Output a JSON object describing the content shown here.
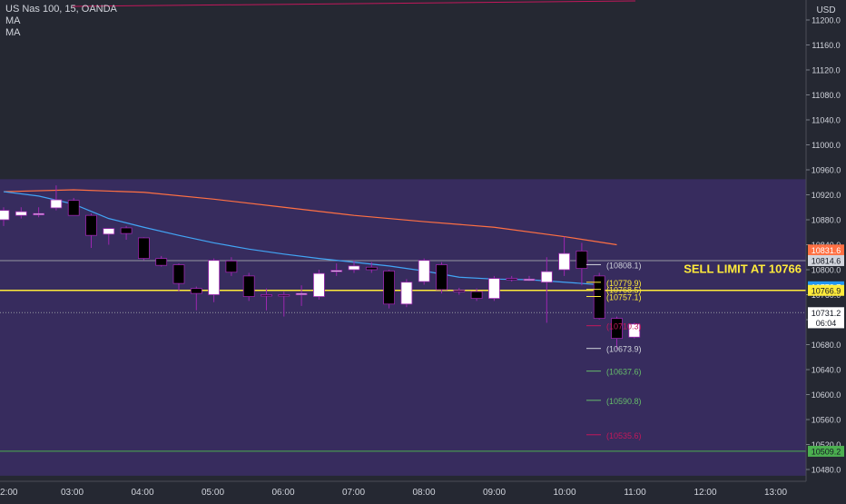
{
  "legend": {
    "symbol": "US Nas 100, 15, OANDA",
    "ma1": "MA",
    "ma2": "MA"
  },
  "chart_data": {
    "type": "candlestick",
    "currency": "USD",
    "y_ticks": [
      "11200.0",
      "11160.0",
      "11120.0",
      "11080.0",
      "11040.0",
      "11000.0",
      "10960.0",
      "10920.0",
      "10880.0",
      "10840.0",
      "10800.0",
      "10760.0",
      "10720.0",
      "10680.0",
      "10640.0",
      "10600.0",
      "10560.0",
      "10520.0",
      "10480.0"
    ],
    "x_ticks": [
      "2:00",
      "03:00",
      "04:00",
      "05:00",
      "06:00",
      "07:00",
      "08:00",
      "09:00",
      "10:00",
      "11:00",
      "12:00",
      "13:00"
    ],
    "ylim": [
      10470,
      11215
    ],
    "zone": {
      "top": 10945,
      "bottom": 10470,
      "color": "#3b2d66"
    },
    "horizontal_lines": [
      {
        "price": 10814.6,
        "color": "#9598a1"
      },
      {
        "price": 10766.9,
        "color": "#ffeb3b"
      },
      {
        "price": 10731.2,
        "color": "#9598a1",
        "dotted": true
      },
      {
        "price": 10509.2,
        "color": "#4caf50"
      }
    ],
    "price_labels": [
      {
        "text": "10831.6",
        "price": 10831.6,
        "bg": "#ff7043",
        "fg": "#ffffff"
      },
      {
        "text": "10814.6",
        "price": 10814.6,
        "bg": "#d1d4dc",
        "fg": "#131722"
      },
      {
        "text": "10772.7",
        "price": 10772.7,
        "bg": "#2196f3",
        "fg": "#ffffff"
      },
      {
        "text": "10766.9",
        "price": 10766.9,
        "bg": "#ffeb3b",
        "fg": "#131722"
      },
      {
        "text": "10731.2",
        "price": 10731.2,
        "bg": "#ffffff",
        "fg": "#131722"
      },
      {
        "text": "06:04",
        "price": 10715.0,
        "bg": "#ffffff",
        "fg": "#131722"
      },
      {
        "text": "10509.2",
        "price": 10509.2,
        "bg": "#4caf50",
        "fg": "#131722"
      }
    ],
    "annotation": {
      "text": "SELL LIMIT AT 10766",
      "color": "#ffeb3b"
    },
    "level_labels": [
      {
        "text": "(10808.1)",
        "price": 10808.1,
        "color": "#d1d4dc"
      },
      {
        "text": "(10779.9)",
        "price": 10779.9,
        "color": "#ffeb3b"
      },
      {
        "text": "(10768.5)",
        "price": 10768.5,
        "color": "#ffeb3b"
      },
      {
        "text": "(10757.1)",
        "price": 10757.1,
        "color": "#ffeb3b"
      },
      {
        "text": "(10710.3)",
        "price": 10710.3,
        "color": "#c2185b"
      },
      {
        "text": "(10673.9)",
        "price": 10673.9,
        "color": "#d1d4dc"
      },
      {
        "text": "(10637.6)",
        "price": 10637.6,
        "color": "#66bb6a"
      },
      {
        "text": "(10590.8)",
        "price": 10590.8,
        "color": "#66bb6a"
      },
      {
        "text": "(10535.6)",
        "price": 10535.6,
        "color": "#c2185b"
      }
    ],
    "candles": [
      {
        "time": "02:30",
        "open": 10880,
        "high": 10900,
        "low": 10870,
        "close": 10895
      },
      {
        "time": "02:45",
        "open": 10887,
        "high": 10900,
        "low": 10882,
        "close": 10893
      },
      {
        "time": "03:00",
        "open": 10888,
        "high": 10900,
        "low": 10884,
        "close": 10890
      },
      {
        "time": "03:15",
        "open": 10899,
        "high": 10935,
        "low": 10895,
        "close": 10912
      },
      {
        "time": "03:30",
        "open": 10911,
        "high": 10915,
        "low": 10888,
        "close": 10887
      },
      {
        "time": "03:45",
        "open": 10887,
        "high": 10890,
        "low": 10835,
        "close": 10855
      },
      {
        "time": "04:00",
        "open": 10857,
        "high": 10865,
        "low": 10840,
        "close": 10866
      },
      {
        "time": "04:15",
        "open": 10867,
        "high": 10870,
        "low": 10848,
        "close": 10858
      },
      {
        "time": "04:30",
        "open": 10851,
        "high": 10852,
        "low": 10815,
        "close": 10818
      },
      {
        "time": "04:45",
        "open": 10818,
        "high": 10822,
        "low": 10805,
        "close": 10807
      },
      {
        "time": "05:00",
        "open": 10808,
        "high": 10810,
        "low": 10765,
        "close": 10778
      },
      {
        "time": "05:15",
        "open": 10770,
        "high": 10773,
        "low": 10735,
        "close": 10762
      },
      {
        "time": "05:30",
        "open": 10760,
        "high": 10818,
        "low": 10748,
        "close": 10815
      },
      {
        "time": "05:45",
        "open": 10814,
        "high": 10820,
        "low": 10790,
        "close": 10796
      },
      {
        "time": "06:00",
        "open": 10790,
        "high": 10795,
        "low": 10750,
        "close": 10757
      },
      {
        "time": "06:15",
        "open": 10760,
        "high": 10770,
        "low": 10735,
        "close": 10758
      },
      {
        "time": "06:30",
        "open": 10760,
        "high": 10765,
        "low": 10725,
        "close": 10758
      },
      {
        "time": "06:45",
        "open": 10760,
        "high": 10775,
        "low": 10742,
        "close": 10762
      },
      {
        "time": "07:00",
        "open": 10757,
        "high": 10800,
        "low": 10752,
        "close": 10794
      },
      {
        "time": "07:15",
        "open": 10797,
        "high": 10810,
        "low": 10790,
        "close": 10799
      },
      {
        "time": "07:30",
        "open": 10800,
        "high": 10815,
        "low": 10795,
        "close": 10806
      },
      {
        "time": "07:45",
        "open": 10804,
        "high": 10812,
        "low": 10795,
        "close": 10800
      },
      {
        "time": "08:00",
        "open": 10798,
        "high": 10800,
        "low": 10738,
        "close": 10745
      },
      {
        "time": "08:15",
        "open": 10745,
        "high": 10785,
        "low": 10740,
        "close": 10780
      },
      {
        "time": "08:30",
        "open": 10781,
        "high": 10818,
        "low": 10776,
        "close": 10815
      },
      {
        "time": "08:45",
        "open": 10808,
        "high": 10812,
        "low": 10762,
        "close": 10768
      },
      {
        "time": "09:00",
        "open": 10767,
        "high": 10771,
        "low": 10760,
        "close": 10766
      },
      {
        "time": "09:15",
        "open": 10765,
        "high": 10770,
        "low": 10750,
        "close": 10754
      },
      {
        "time": "09:30",
        "open": 10754,
        "high": 10790,
        "low": 10750,
        "close": 10786
      },
      {
        "time": "09:45",
        "open": 10786,
        "high": 10790,
        "low": 10781,
        "close": 10784
      },
      {
        "time": "10:00",
        "open": 10784,
        "high": 10790,
        "low": 10782,
        "close": 10785
      },
      {
        "time": "10:15",
        "open": 10780,
        "high": 10820,
        "low": 10715,
        "close": 10797
      },
      {
        "time": "10:30",
        "open": 10800,
        "high": 10853,
        "low": 10790,
        "close": 10826
      },
      {
        "time": "10:45",
        "open": 10830,
        "high": 10843,
        "low": 10775,
        "close": 10802
      },
      {
        "time": "11:00",
        "open": 10790,
        "high": 10795,
        "low": 10720,
        "close": 10722
      },
      {
        "time": "11:15",
        "open": 10722,
        "high": 10725,
        "low": 10673,
        "close": 10690
      },
      {
        "time": "11:30",
        "open": 10692,
        "high": 10715,
        "low": 10690,
        "close": 10713
      }
    ],
    "ma_fast": {
      "color": "#42a5f5",
      "points": [
        [
          0,
          10925
        ],
        [
          2,
          10918
        ],
        [
          4,
          10905
        ],
        [
          6,
          10882
        ],
        [
          8,
          10868
        ],
        [
          10,
          10855
        ],
        [
          12,
          10843
        ],
        [
          14,
          10833
        ],
        [
          16,
          10825
        ],
        [
          18,
          10818
        ],
        [
          20,
          10812
        ],
        [
          22,
          10806
        ],
        [
          24,
          10798
        ],
        [
          26,
          10788
        ],
        [
          28,
          10785
        ],
        [
          30,
          10784
        ],
        [
          32,
          10780
        ],
        [
          34,
          10776
        ]
      ]
    },
    "ma_slow": {
      "color": "#ff7043",
      "points": [
        [
          0,
          10925
        ],
        [
          4,
          10928
        ],
        [
          8,
          10924
        ],
        [
          12,
          10913
        ],
        [
          16,
          10900
        ],
        [
          20,
          10887
        ],
        [
          24,
          10877
        ],
        [
          28,
          10868
        ],
        [
          32,
          10853
        ],
        [
          35,
          10840
        ]
      ]
    },
    "top_line": {
      "color": "#c2185b"
    }
  }
}
